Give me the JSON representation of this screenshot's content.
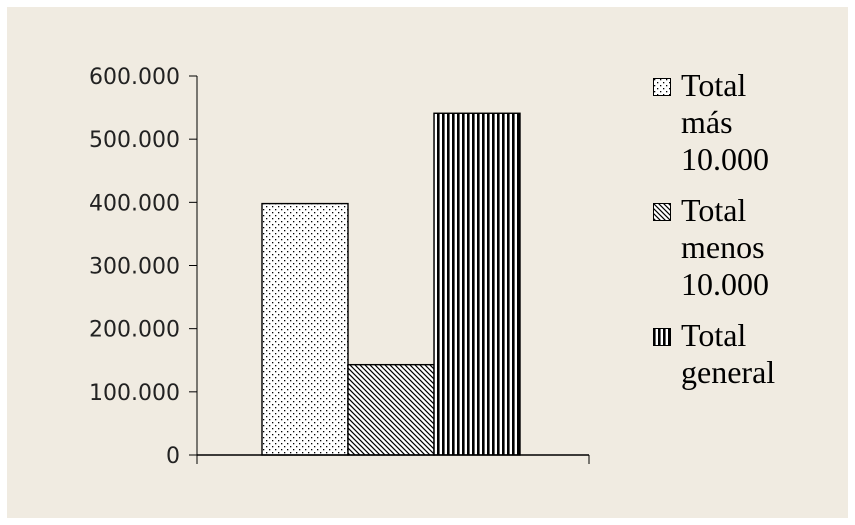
{
  "chart_data": {
    "type": "bar",
    "categories": [
      "Total más 10.000",
      "Total menos 10.000",
      "Total general"
    ],
    "values": [
      398000,
      143000,
      541000
    ],
    "series_patterns": [
      "dots",
      "diagonal",
      "vertical"
    ],
    "y_ticks": [
      "0",
      "100.000",
      "200.000",
      "300.000",
      "400.000",
      "500.000",
      "600.000"
    ],
    "ylim": [
      0,
      600000
    ],
    "ytick_step": 100000,
    "grid": false,
    "legend": {
      "position": "right",
      "items": [
        {
          "label": "Total más 10.000",
          "pattern": "dots"
        },
        {
          "label": "Total menos 10.000",
          "pattern": "diagonal"
        },
        {
          "label": "Total general",
          "pattern": "vertical"
        }
      ]
    },
    "colors": {
      "background": "#f0ebe1",
      "bar_fill": "#ffffff",
      "ink": "#000000"
    }
  }
}
